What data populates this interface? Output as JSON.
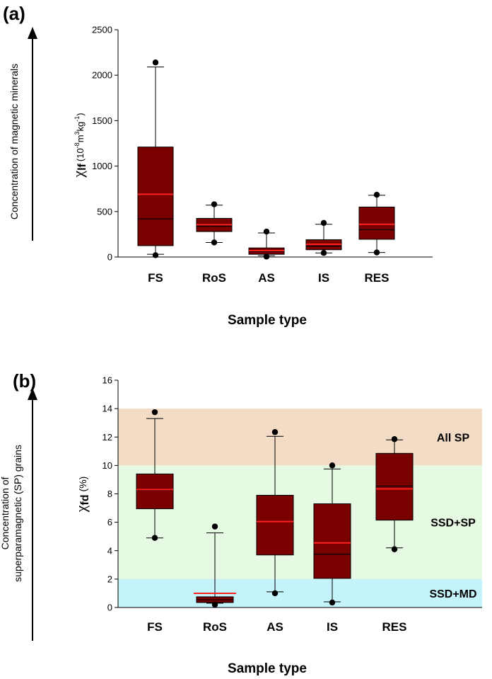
{
  "chart_data": [
    {
      "panel": "(a)",
      "type": "box",
      "categories": [
        "FS",
        "RoS",
        "AS",
        "IS",
        "RES"
      ],
      "boxes": [
        {
          "whisker_low": 30,
          "q1": 125,
          "median": 420,
          "mean": 690,
          "q3": 1210,
          "whisker_high": 2090,
          "outliers": [
            20,
            2140
          ]
        },
        {
          "whisker_low": 160,
          "q1": 280,
          "median": 340,
          "mean": 355,
          "q3": 425,
          "whisker_high": 570,
          "outliers": [
            160,
            580
          ]
        },
        {
          "whisker_low": 15,
          "q1": 30,
          "median": 60,
          "mean": 70,
          "q3": 100,
          "whisker_high": 265,
          "outliers": [
            5,
            280
          ]
        },
        {
          "whisker_low": 45,
          "q1": 80,
          "median": 120,
          "mean": 140,
          "q3": 190,
          "whisker_high": 360,
          "outliers": [
            45,
            375
          ]
        },
        {
          "whisker_low": 50,
          "q1": 195,
          "median": 300,
          "mean": 360,
          "q3": 550,
          "whisker_high": 680,
          "outliers": [
            50,
            685
          ]
        }
      ],
      "yticks": [
        "0",
        "500",
        "1000",
        "1500",
        "2000",
        "2500"
      ],
      "ylim": [
        0,
        2500
      ],
      "ylabel_symbol": "χ",
      "ylabel_sub": "lf",
      "ylabel_units": "(10",
      "ylabel_exp1": "-8",
      "ylabel_m": "m",
      "ylabel_exp2": "3",
      "ylabel_kg": "kg",
      "ylabel_exp3": "-1",
      "ylabel_close": ")",
      "xlabel": "Sample type",
      "side_label": "Concentration of magnetic minerals",
      "colors": {
        "box": "#7a0000",
        "mean": "#ff2020",
        "median": "#000000"
      }
    },
    {
      "panel": "(b)",
      "type": "box",
      "categories": [
        "FS",
        "RoS",
        "AS",
        "IS",
        "RES"
      ],
      "boxes": [
        {
          "whisker_low": 4.9,
          "q1": 6.95,
          "median": 8.25,
          "mean": 8.3,
          "q3": 9.4,
          "whisker_high": 13.3,
          "outliers": [
            4.9,
            13.75
          ]
        },
        {
          "whisker_low": 0.3,
          "q1": 0.35,
          "median": 0.55,
          "mean": 1.0,
          "q3": 0.75,
          "whisker_high": 5.25,
          "outliers": [
            0.2,
            5.7
          ]
        },
        {
          "whisker_low": 1.1,
          "q1": 3.7,
          "median": 6.05,
          "mean": 6.05,
          "q3": 7.9,
          "whisker_high": 12.05,
          "outliers": [
            1.0,
            12.35
          ]
        },
        {
          "whisker_low": 0.4,
          "q1": 2.05,
          "median": 3.75,
          "mean": 4.55,
          "q3": 7.3,
          "whisker_high": 9.75,
          "outliers": [
            0.35,
            10.0
          ]
        },
        {
          "whisker_low": 4.2,
          "q1": 6.15,
          "median": 8.55,
          "mean": 8.35,
          "q3": 10.85,
          "whisker_high": 11.8,
          "outliers": [
            4.1,
            11.85
          ]
        }
      ],
      "yticks": [
        "0",
        "2",
        "4",
        "6",
        "8",
        "10",
        "12",
        "14",
        "16"
      ],
      "ylim": [
        0,
        16
      ],
      "zones": [
        {
          "label": "All SP",
          "from": 10,
          "to": 14,
          "color": "#f2dcc6"
        },
        {
          "label": "SSD+SP",
          "from": 2,
          "to": 10,
          "color": "#e6f9e2"
        },
        {
          "label": "SSD+MD",
          "from": 0,
          "to": 2,
          "color": "#c5f3fb"
        }
      ],
      "ylabel_symbol": "χ",
      "ylabel_sub": "fd",
      "ylabel_units": "(%)",
      "xlabel": "Sample type",
      "side_label_line1": "Concentration of",
      "side_label_line2": "superparamagnetic (SP) grains",
      "colors": {
        "box": "#7a0000",
        "mean": "#ff2020",
        "median": "#000000"
      }
    }
  ]
}
